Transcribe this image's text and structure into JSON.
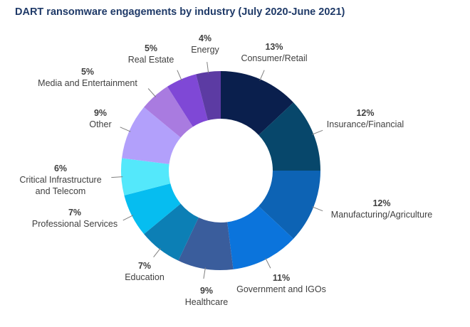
{
  "chart_data": {
    "type": "pie",
    "title": "DART ransomware engagements by industry (July 2020-June 2021)",
    "donut": true,
    "start_angle_deg": 0,
    "direction": "clockwise",
    "series": [
      {
        "name": "Consumer/Retail",
        "label": [
          "Consumer/Retail"
        ],
        "value": 13,
        "value_label": "13%",
        "color": "#0a1f4d"
      },
      {
        "name": "Insurance/Financial",
        "label": [
          "Insurance/Financial"
        ],
        "value": 12,
        "value_label": "12%",
        "color": "#07476b"
      },
      {
        "name": "Manufacturing/Agriculture",
        "label": [
          "Manufacturing/Agriculture"
        ],
        "value": 12,
        "value_label": "12%",
        "color": "#0d63b4"
      },
      {
        "name": "Government and IGOs",
        "label": [
          "Government and IGOs"
        ],
        "value": 11,
        "value_label": "11%",
        "color": "#0b74dc"
      },
      {
        "name": "Healthcare",
        "label": [
          "Healthcare"
        ],
        "value": 9,
        "value_label": "9%",
        "color": "#3a5d9c"
      },
      {
        "name": "Education",
        "label": [
          "Education"
        ],
        "value": 7,
        "value_label": "7%",
        "color": "#0c7fb5"
      },
      {
        "name": "Professional Services",
        "label": [
          "Professional Services"
        ],
        "value": 7,
        "value_label": "7%",
        "color": "#06bdf0"
      },
      {
        "name": "Critical Infrastructure and Telecom",
        "label": [
          "Critical Infrastructure",
          "and Telecom"
        ],
        "value": 6,
        "value_label": "6%",
        "color": "#54e8fb"
      },
      {
        "name": "Other",
        "label": [
          "Other"
        ],
        "value": 9,
        "value_label": "9%",
        "color": "#b2a0fb"
      },
      {
        "name": "Media and Entertainment",
        "label": [
          "Media and Entertainment"
        ],
        "value": 5,
        "value_label": "5%",
        "color": "#a97be0"
      },
      {
        "name": "Real Estate",
        "label": [
          "Real Estate"
        ],
        "value": 5,
        "value_label": "5%",
        "color": "#7f48d6"
      },
      {
        "name": "Energy",
        "label": [
          "Energy"
        ],
        "value": 4,
        "value_label": "4%",
        "color": "#5c3ba3"
      }
    ]
  }
}
